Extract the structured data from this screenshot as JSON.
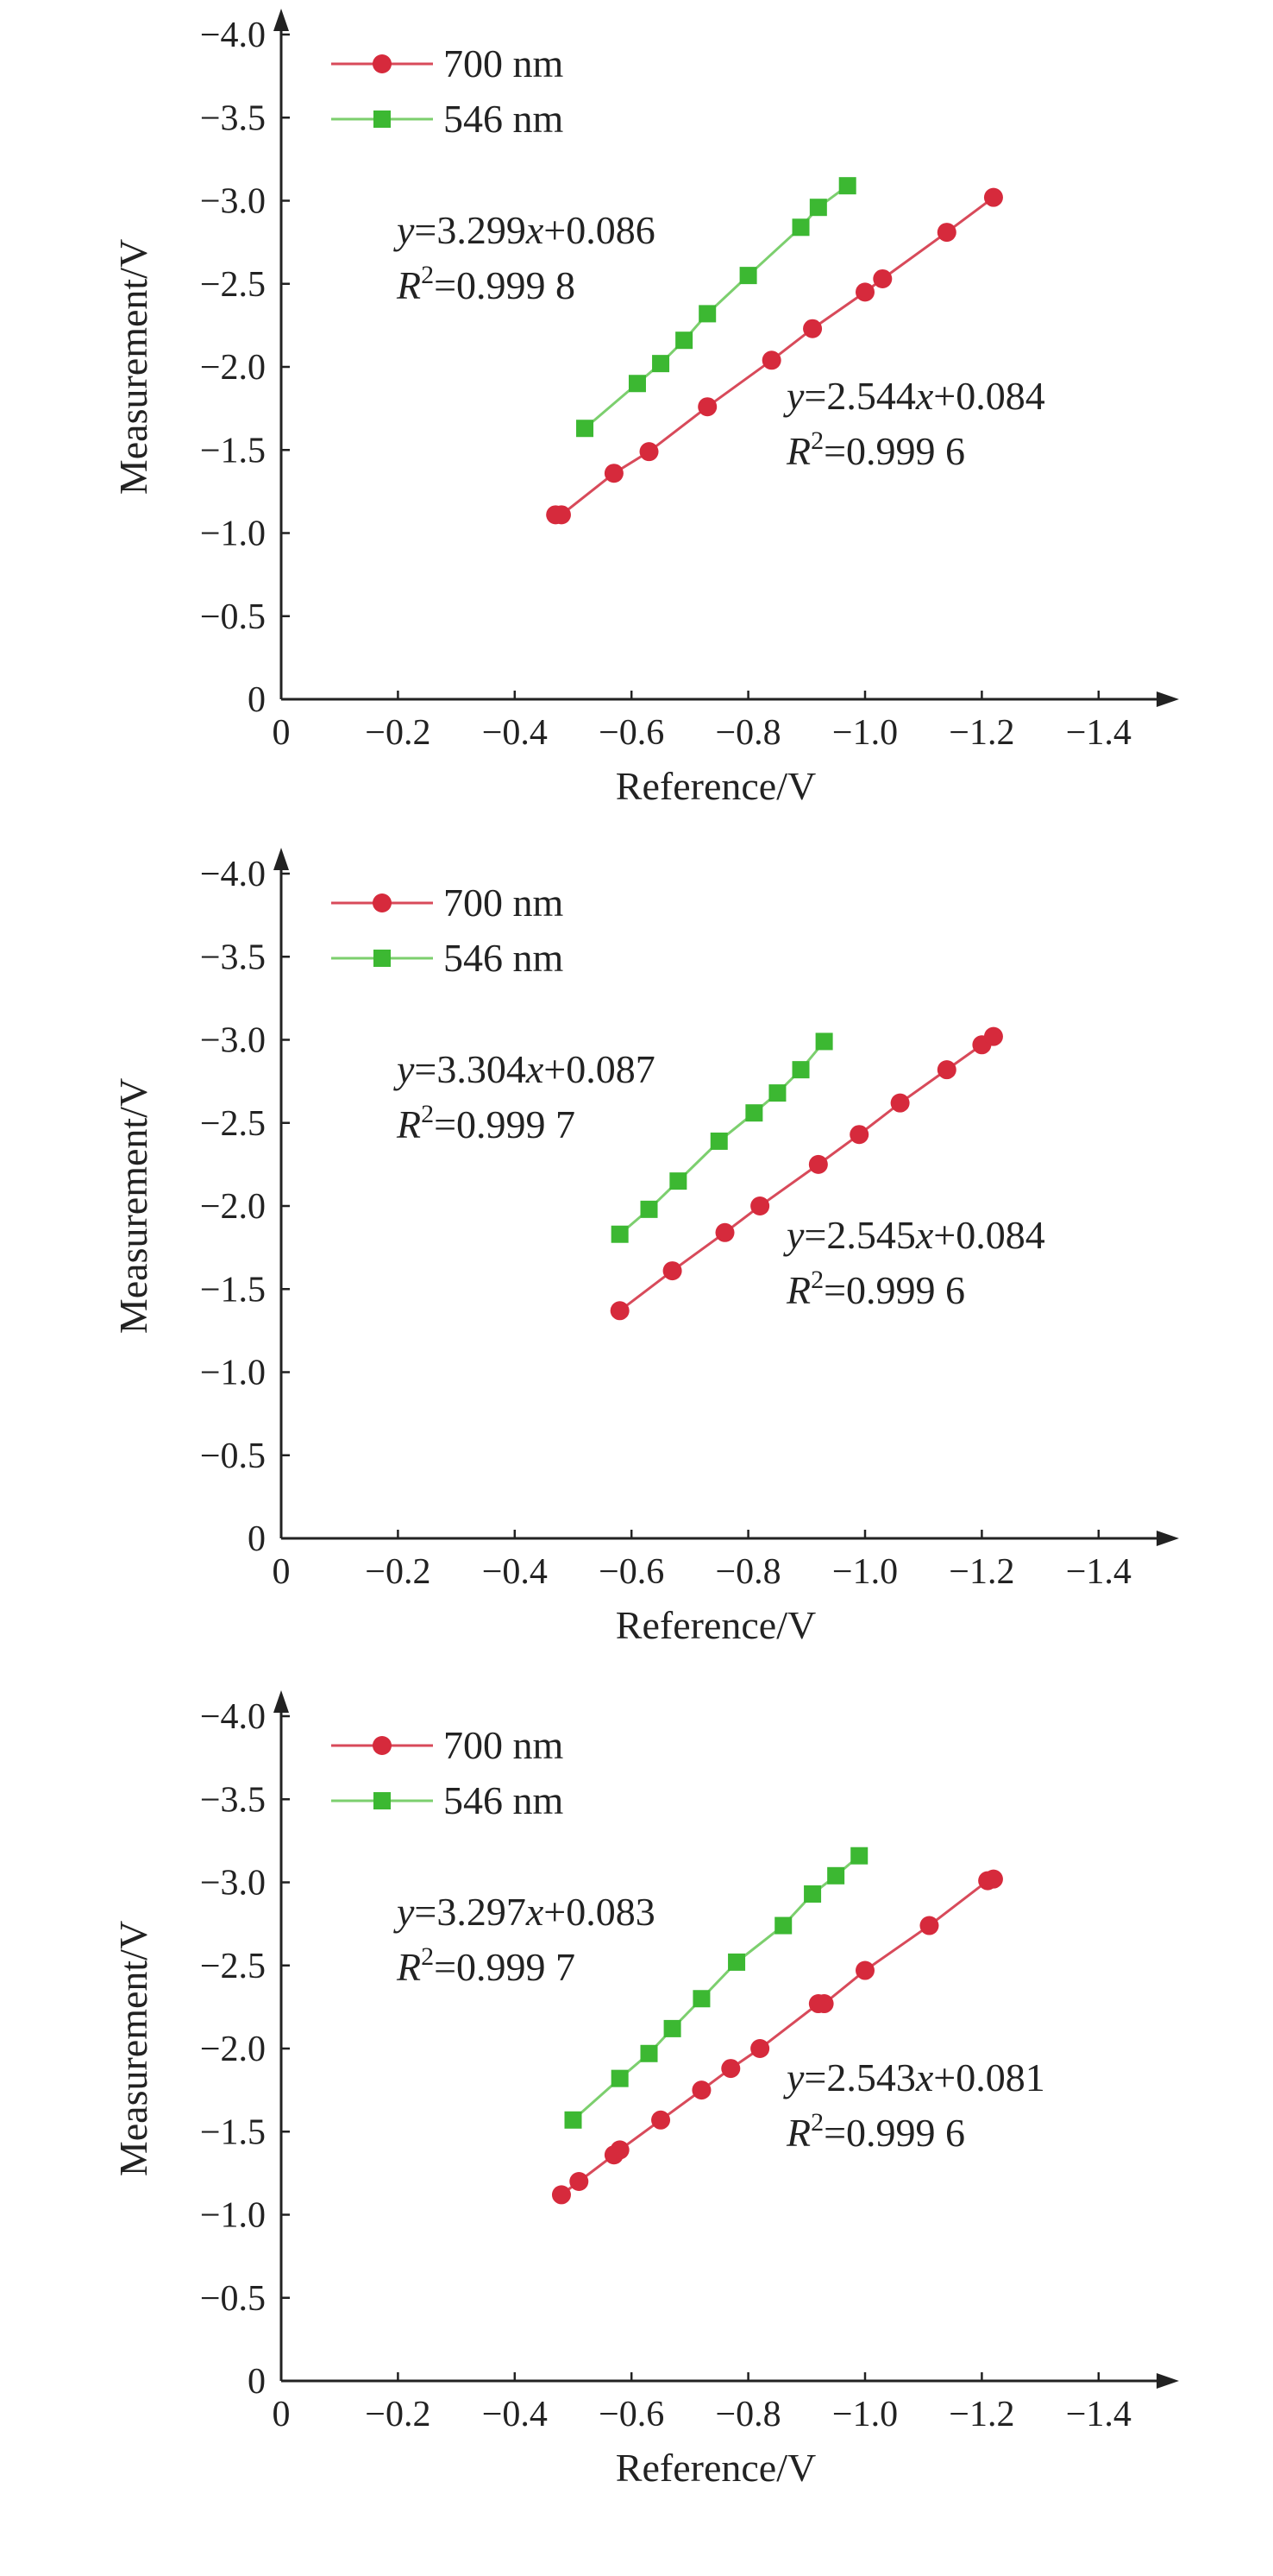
{
  "colors": {
    "red": "#d62a3c",
    "red_line": "#d84a5a",
    "green": "#3cb832",
    "green_line": "#7ccf6e",
    "axis": "#222222"
  },
  "chart_data": [
    {
      "type": "scatter",
      "xlabel": "Reference/V",
      "ylabel": "Measurement/V",
      "xlim": [
        0,
        -1.5
      ],
      "ylim": [
        0,
        -4.0
      ],
      "xticks": [
        "0",
        "−0.2",
        "−0.4",
        "−0.6",
        "−0.8",
        "−1.0",
        "−1.2",
        "−1.4"
      ],
      "yticks": [
        "0",
        "−0.5",
        "−1.0",
        "−1.5",
        "−2.0",
        "−2.5",
        "−3.0",
        "−3.5",
        "−4.0"
      ],
      "legend_placement": "top-left",
      "series": [
        {
          "name": "700 nm",
          "marker": "circle",
          "x": [
            -0.47,
            -0.48,
            -0.57,
            -0.63,
            -0.73,
            -0.84,
            -0.91,
            -1.0,
            -1.03,
            -1.14,
            -1.22
          ],
          "y": [
            -1.11,
            -1.11,
            -1.36,
            -1.49,
            -1.76,
            -2.04,
            -2.23,
            -2.45,
            -2.53,
            -2.81,
            -3.02
          ]
        },
        {
          "name": "546 nm",
          "marker": "square",
          "x": [
            -0.52,
            -0.61,
            -0.65,
            -0.69,
            -0.73,
            -0.8,
            -0.89,
            -0.92,
            -0.97
          ],
          "y": [
            -1.63,
            -1.9,
            -2.02,
            -2.16,
            -2.32,
            -2.55,
            -2.84,
            -2.96,
            -3.09
          ]
        }
      ],
      "annotations": [
        {
          "line1_a": "y",
          "line1_b": "=3.299",
          "line1_c": "x",
          "line1_d": "+0.086",
          "line2_a": "R",
          "line2_sup": "2",
          "line2_b": "=0.999 8"
        },
        {
          "line1_a": "y",
          "line1_b": "=2.544",
          "line1_c": "x",
          "line1_d": "+0.084",
          "line2_a": "R",
          "line2_sup": "2",
          "line2_b": "=0.999 6"
        }
      ]
    },
    {
      "type": "scatter",
      "xlabel": "Reference/V",
      "ylabel": "Measurement/V",
      "xlim": [
        0,
        -1.5
      ],
      "ylim": [
        0,
        -4.0
      ],
      "xticks": [
        "0",
        "−0.2",
        "−0.4",
        "−0.6",
        "−0.8",
        "−1.0",
        "−1.2",
        "−1.4"
      ],
      "yticks": [
        "0",
        "−0.5",
        "−1.0",
        "−1.5",
        "−2.0",
        "−2.5",
        "−3.0",
        "−3.5",
        "−4.0"
      ],
      "legend_placement": "top-left",
      "series": [
        {
          "name": "700 nm",
          "marker": "circle",
          "x": [
            -0.58,
            -0.67,
            -0.76,
            -0.82,
            -0.92,
            -0.99,
            -1.06,
            -1.14,
            -1.2,
            -1.22
          ],
          "y": [
            -1.37,
            -1.61,
            -1.84,
            -2.0,
            -2.25,
            -2.43,
            -2.62,
            -2.82,
            -2.97,
            -3.02
          ]
        },
        {
          "name": "546 nm",
          "marker": "square",
          "x": [
            -0.58,
            -0.63,
            -0.68,
            -0.75,
            -0.81,
            -0.85,
            -0.89,
            -0.93
          ],
          "y": [
            -1.83,
            -1.98,
            -2.15,
            -2.39,
            -2.56,
            -2.68,
            -2.82,
            -2.99
          ]
        }
      ],
      "annotations": [
        {
          "line1_a": "y",
          "line1_b": "=3.304",
          "line1_c": "x",
          "line1_d": "+0.087",
          "line2_a": "R",
          "line2_sup": "2",
          "line2_b": "=0.999 7"
        },
        {
          "line1_a": "y",
          "line1_b": "=2.545",
          "line1_c": "x",
          "line1_d": "+0.084",
          "line2_a": "R",
          "line2_sup": "2",
          "line2_b": "=0.999 6"
        }
      ]
    },
    {
      "type": "scatter",
      "xlabel": "Reference/V",
      "ylabel": "Measurement/V",
      "xlim": [
        0,
        -1.5
      ],
      "ylim": [
        0,
        -4.0
      ],
      "xticks": [
        "0",
        "−0.2",
        "−0.4",
        "−0.6",
        "−0.8",
        "−1.0",
        "−1.2",
        "−1.4"
      ],
      "yticks": [
        "0",
        "−0.5",
        "−1.0",
        "−1.5",
        "−2.0",
        "−2.5",
        "−3.0",
        "−3.5",
        "−4.0"
      ],
      "legend_placement": "top-left",
      "series": [
        {
          "name": "700 nm",
          "marker": "circle",
          "x": [
            -0.48,
            -0.51,
            -0.57,
            -0.58,
            -0.65,
            -0.72,
            -0.77,
            -0.82,
            -0.92,
            -0.93,
            -1.0,
            -1.11,
            -1.21,
            -1.22
          ],
          "y": [
            -1.12,
            -1.2,
            -1.36,
            -1.39,
            -1.57,
            -1.75,
            -1.88,
            -2.0,
            -2.27,
            -2.27,
            -2.47,
            -2.74,
            -3.01,
            -3.02
          ]
        },
        {
          "name": "546 nm",
          "marker": "square",
          "x": [
            -0.5,
            -0.58,
            -0.63,
            -0.67,
            -0.72,
            -0.78,
            -0.86,
            -0.91,
            -0.95,
            -0.99
          ],
          "y": [
            -1.57,
            -1.82,
            -1.97,
            -2.12,
            -2.3,
            -2.52,
            -2.74,
            -2.93,
            -3.04,
            -3.16
          ]
        }
      ],
      "annotations": [
        {
          "line1_a": "y",
          "line1_b": "=3.297",
          "line1_c": "x",
          "line1_d": "+0.083",
          "line2_a": "R",
          "line2_sup": "2",
          "line2_b": "=0.999 7"
        },
        {
          "line1_a": "y",
          "line1_b": "=2.543",
          "line1_c": "x",
          "line1_d": "+0.081",
          "line2_a": "R",
          "line2_sup": "2",
          "line2_b": "=0.999 6"
        }
      ]
    }
  ]
}
